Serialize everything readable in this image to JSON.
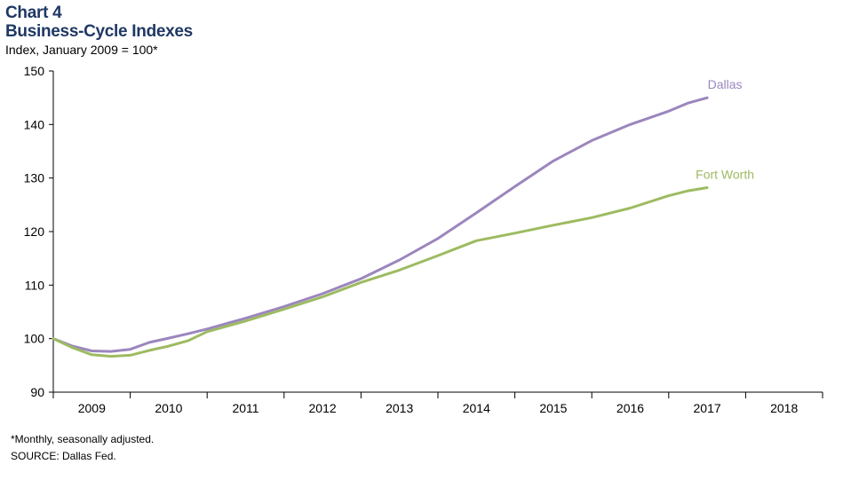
{
  "header": {
    "chart_number": "Chart 4",
    "title": "Business-Cycle Indexes",
    "subtitle": "Index, January 2009 = 100*"
  },
  "footer": {
    "note": "*Monthly, seasonally adjusted.",
    "source": "SOURCE: Dallas Fed."
  },
  "colors": {
    "dallas": "#9b86bd",
    "fort_worth": "#9dbb61",
    "title": "#1f3864",
    "axis": "#000000"
  },
  "chart_data": {
    "type": "line",
    "title": "Business-Cycle Indexes",
    "ylabel": "Index, January 2009 = 100*",
    "ylim": [
      90,
      150
    ],
    "yticks": [
      90,
      100,
      110,
      120,
      130,
      140,
      150
    ],
    "xlim": [
      2009.0,
      2019.0
    ],
    "year_labels": [
      "2009",
      "2010",
      "2011",
      "2012",
      "2013",
      "2014",
      "2015",
      "2016",
      "2017",
      "2018"
    ],
    "grid": false,
    "series": [
      {
        "name": "Dallas",
        "points": [
          [
            2009.0,
            100.0
          ],
          [
            2009.25,
            98.6
          ],
          [
            2009.5,
            97.7
          ],
          [
            2009.75,
            97.6
          ],
          [
            2010.0,
            98.0
          ],
          [
            2010.25,
            99.3
          ],
          [
            2010.5,
            100.1
          ],
          [
            2010.75,
            100.9
          ],
          [
            2011.0,
            101.8
          ],
          [
            2011.5,
            103.8
          ],
          [
            2012.0,
            106.0
          ],
          [
            2012.5,
            108.4
          ],
          [
            2013.0,
            111.2
          ],
          [
            2013.5,
            114.7
          ],
          [
            2014.0,
            118.7
          ],
          [
            2014.5,
            123.5
          ],
          [
            2015.0,
            128.4
          ],
          [
            2015.5,
            133.2
          ],
          [
            2016.0,
            137.0
          ],
          [
            2016.5,
            140.0
          ],
          [
            2017.0,
            142.5
          ],
          [
            2017.25,
            144.0
          ],
          [
            2017.5,
            145.0
          ]
        ]
      },
      {
        "name": "Fort Worth",
        "points": [
          [
            2009.0,
            100.0
          ],
          [
            2009.25,
            98.3
          ],
          [
            2009.5,
            97.0
          ],
          [
            2009.75,
            96.7
          ],
          [
            2010.0,
            96.9
          ],
          [
            2010.25,
            97.8
          ],
          [
            2010.5,
            98.6
          ],
          [
            2010.75,
            99.6
          ],
          [
            2011.0,
            101.3
          ],
          [
            2011.5,
            103.3
          ],
          [
            2012.0,
            105.5
          ],
          [
            2012.5,
            107.8
          ],
          [
            2013.0,
            110.5
          ],
          [
            2013.5,
            112.8
          ],
          [
            2014.0,
            115.5
          ],
          [
            2014.5,
            118.3
          ],
          [
            2015.0,
            119.7
          ],
          [
            2015.5,
            121.2
          ],
          [
            2016.0,
            122.6
          ],
          [
            2016.5,
            124.4
          ],
          [
            2017.0,
            126.7
          ],
          [
            2017.25,
            127.6
          ],
          [
            2017.5,
            128.2
          ]
        ]
      }
    ]
  }
}
